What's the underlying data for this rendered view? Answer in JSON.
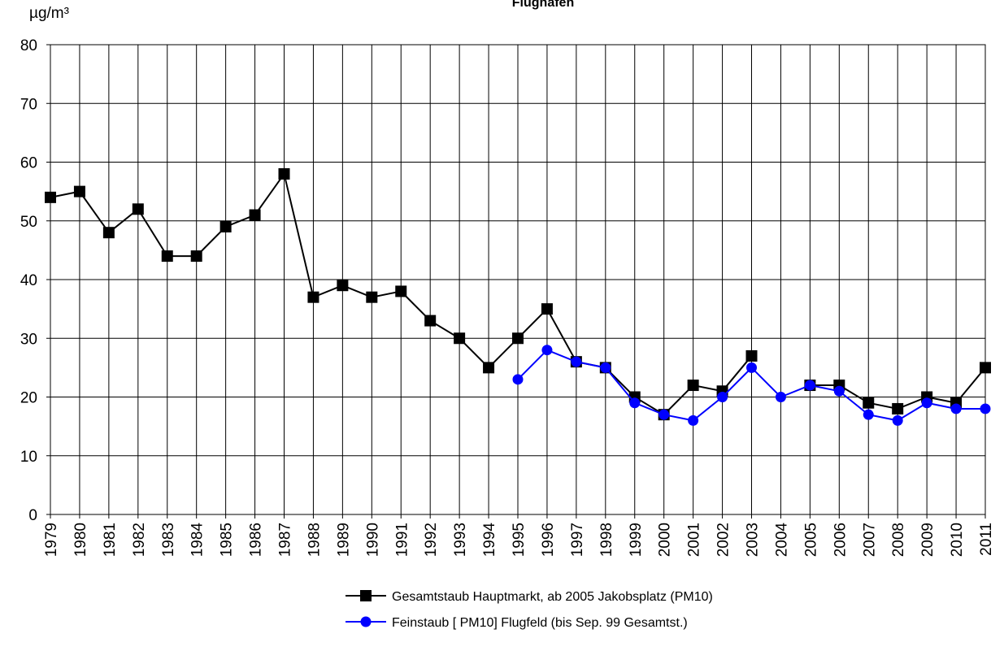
{
  "chart_data": {
    "type": "line",
    "title": "Flughafen",
    "y_label": "µg/m³",
    "categories": [
      "1979",
      "1980",
      "1981",
      "1982",
      "1983",
      "1984",
      "1985",
      "1986",
      "1987",
      "1988",
      "1989",
      "1990",
      "1991",
      "1992",
      "1993",
      "1994",
      "1995",
      "1996",
      "1997",
      "1998",
      "1999",
      "2000",
      "2001",
      "2002",
      "2003",
      "2004",
      "2005",
      "2006",
      "2007",
      "2008",
      "2009",
      "2010",
      "2011"
    ],
    "series": [
      {
        "name": "Gesamtstaub Hauptmarkt, ab 2005 Jakobsplatz (PM10)",
        "color": "#000000",
        "marker": "square",
        "values": [
          54,
          55,
          48,
          52,
          44,
          44,
          49,
          51,
          58,
          37,
          39,
          37,
          38,
          33,
          30,
          25,
          30,
          35,
          26,
          25,
          20,
          17,
          22,
          21,
          27,
          null,
          22,
          22,
          19,
          18,
          20,
          19,
          25
        ]
      },
      {
        "name": "Feinstaub [ PM10] Flugfeld (bis Sep. 99 Gesamtst.)",
        "color": "#0000ff",
        "marker": "circle",
        "values": [
          null,
          null,
          null,
          null,
          null,
          null,
          null,
          null,
          null,
          null,
          null,
          null,
          null,
          null,
          null,
          null,
          23,
          28,
          26,
          25,
          19,
          17,
          16,
          20,
          25,
          20,
          22,
          21,
          17,
          16,
          19,
          18,
          18
        ]
      }
    ],
    "ylim": [
      0,
      80
    ],
    "yticks": [
      0,
      10,
      20,
      30,
      40,
      50,
      60,
      70,
      80
    ],
    "grid": true
  }
}
